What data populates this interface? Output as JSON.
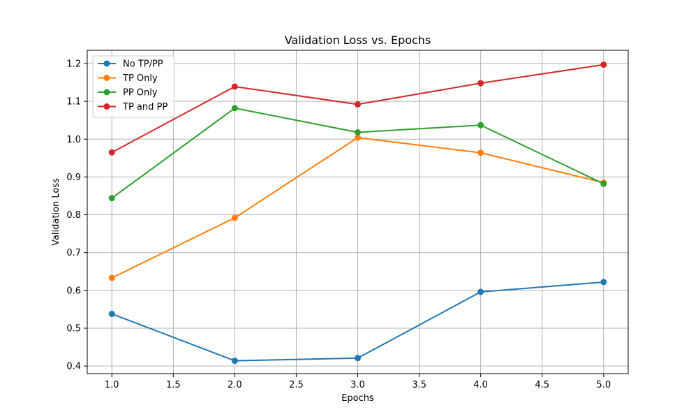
{
  "chart_data": {
    "type": "line",
    "title": "Validation Loss vs. Epochs",
    "xlabel": "Epochs",
    "ylabel": "Validation Loss",
    "x": [
      1,
      2,
      3,
      4,
      5
    ],
    "xlim": [
      0.8,
      5.2
    ],
    "ylim": [
      0.38,
      1.235
    ],
    "xticks": [
      "1.0",
      "1.5",
      "2.0",
      "2.5",
      "3.0",
      "3.5",
      "4.0",
      "4.5",
      "5.0"
    ],
    "yticks": [
      "0.4",
      "0.5",
      "0.6",
      "0.7",
      "0.8",
      "0.9",
      "1.0",
      "1.1",
      "1.2"
    ],
    "grid": true,
    "legend_position": "top-left",
    "series": [
      {
        "name": "No TP/PP",
        "color": "#1f77b4",
        "values": [
          0.538,
          0.414,
          0.421,
          0.596,
          0.622
        ]
      },
      {
        "name": "TP Only",
        "color": "#ff7f0e",
        "values": [
          0.633,
          0.792,
          1.004,
          0.964,
          0.885
        ]
      },
      {
        "name": "PP Only",
        "color": "#2ca02c",
        "values": [
          0.844,
          1.082,
          1.018,
          1.037,
          0.882
        ]
      },
      {
        "name": "TP and PP",
        "color": "#d62728",
        "values": [
          0.965,
          1.139,
          1.092,
          1.148,
          1.197
        ]
      }
    ]
  }
}
